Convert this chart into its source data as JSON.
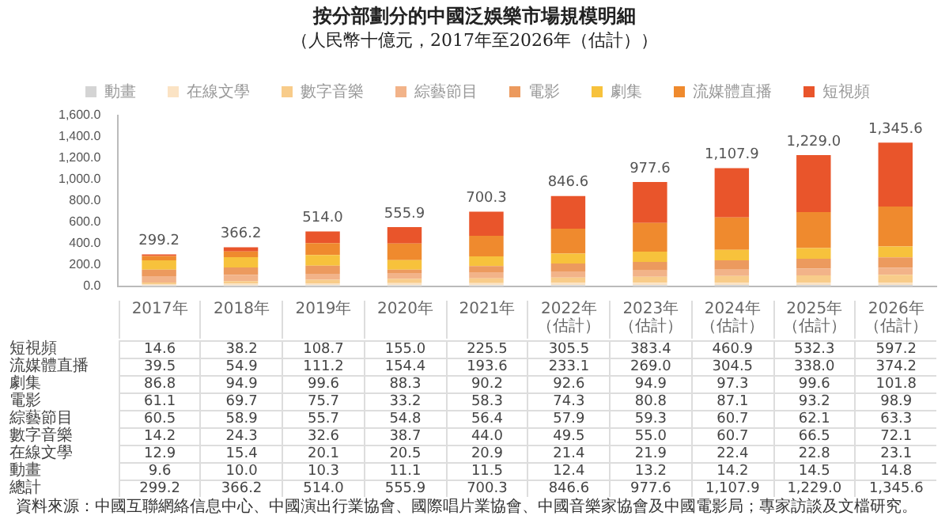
{
  "chart_data": {
    "type": "bar",
    "title": "按分部劃分的中國泛娛樂市場規模明細",
    "subtitle": "（人民幣十億元，2017年至2026年（估計））",
    "categories": [
      "2017年",
      "2018年",
      "2019年",
      "2020年",
      "2021年",
      "2022年（估計）",
      "2023年（估計）",
      "2024年（估計）",
      "2025年（估計）",
      "2026年（估計）"
    ],
    "stacked": true,
    "legend": "top",
    "ylim": [
      0,
      1600
    ],
    "yticks": [
      {
        "value": 0,
        "label": "0.0"
      },
      {
        "value": 200,
        "label": "200.0"
      },
      {
        "value": 400,
        "label": "400.0"
      },
      {
        "value": 600,
        "label": "600.0"
      },
      {
        "value": 800,
        "label": "800.0"
      },
      {
        "value": 1000,
        "label": "1,000.0"
      },
      {
        "value": 1200,
        "label": "1,200.0"
      },
      {
        "value": 1400,
        "label": "1,400.0"
      },
      {
        "value": 1600,
        "label": "1,600.0"
      }
    ],
    "series": [
      {
        "name": "動畫",
        "color": "#d4d4d4",
        "values": [
          9.6,
          10.0,
          10.3,
          11.1,
          11.5,
          12.4,
          13.2,
          14.2,
          14.5,
          14.8
        ],
        "value_labels": [
          "9.6",
          "10.0",
          "10.3",
          "11.1",
          "11.5",
          "12.4",
          "13.2",
          "14.2",
          "14.5",
          "14.8"
        ]
      },
      {
        "name": "在線文學",
        "color": "#fbe3c4",
        "values": [
          12.9,
          15.4,
          20.1,
          20.5,
          20.9,
          21.4,
          21.9,
          22.4,
          22.8,
          23.1
        ],
        "value_labels": [
          "12.9",
          "15.4",
          "20.1",
          "20.5",
          "20.9",
          "21.4",
          "21.9",
          "22.4",
          "22.8",
          "23.1"
        ]
      },
      {
        "name": "數字音樂",
        "color": "#f8cc8a",
        "values": [
          14.2,
          24.3,
          32.6,
          38.7,
          44.0,
          49.5,
          55.0,
          60.7,
          66.5,
          72.1
        ],
        "value_labels": [
          "14.2",
          "24.3",
          "32.6",
          "38.7",
          "44.0",
          "49.5",
          "55.0",
          "60.7",
          "66.5",
          "72.1"
        ]
      },
      {
        "name": "綜藝節目",
        "color": "#f2b389",
        "values": [
          60.5,
          58.9,
          55.7,
          54.8,
          56.4,
          57.9,
          59.3,
          60.7,
          62.1,
          63.3
        ],
        "value_labels": [
          "60.5",
          "58.9",
          "55.7",
          "54.8",
          "56.4",
          "57.9",
          "59.3",
          "60.7",
          "62.1",
          "63.3"
        ]
      },
      {
        "name": "電影",
        "color": "#ec9a5e",
        "values": [
          61.1,
          69.7,
          75.7,
          33.2,
          58.3,
          74.3,
          80.8,
          87.1,
          93.2,
          98.9
        ],
        "value_labels": [
          "61.1",
          "69.7",
          "75.7",
          "33.2",
          "58.3",
          "74.3",
          "80.8",
          "87.1",
          "93.2",
          "98.9"
        ]
      },
      {
        "name": "劇集",
        "color": "#f7c23c",
        "values": [
          86.8,
          94.9,
          99.6,
          88.3,
          90.2,
          92.6,
          94.9,
          97.3,
          99.6,
          101.8
        ],
        "value_labels": [
          "86.8",
          "94.9",
          "99.6",
          "88.3",
          "90.2",
          "92.6",
          "94.9",
          "97.3",
          "99.6",
          "101.8"
        ]
      },
      {
        "name": "流媒體直播",
        "color": "#ef8a2e",
        "values": [
          39.5,
          54.9,
          111.2,
          154.4,
          193.6,
          233.1,
          269.0,
          304.5,
          338.0,
          374.2
        ],
        "value_labels": [
          "39.5",
          "54.9",
          "111.2",
          "154.4",
          "193.6",
          "233.1",
          "269.0",
          "304.5",
          "338.0",
          "374.2"
        ]
      },
      {
        "name": "短視頻",
        "color": "#e9552b",
        "values": [
          14.6,
          38.2,
          108.7,
          155.0,
          225.5,
          305.5,
          383.4,
          460.9,
          532.3,
          597.2
        ],
        "value_labels": [
          "14.6",
          "38.2",
          "108.7",
          "155.0",
          "225.5",
          "305.5",
          "383.4",
          "460.9",
          "532.3",
          "597.2"
        ]
      }
    ],
    "totals": [
      "299.2",
      "366.2",
      "514.0",
      "555.9",
      "700.3",
      "846.6",
      "977.6",
      "1,107.9",
      "1,229.0",
      "1,345.6"
    ],
    "annotations": [
      "總計",
      "資料來源：中國互聯網絡信息中心、中國演出行業協會、國際唱片業協會、中國音樂家協會及中國電影局；專家訪談及文檔研究。"
    ]
  }
}
